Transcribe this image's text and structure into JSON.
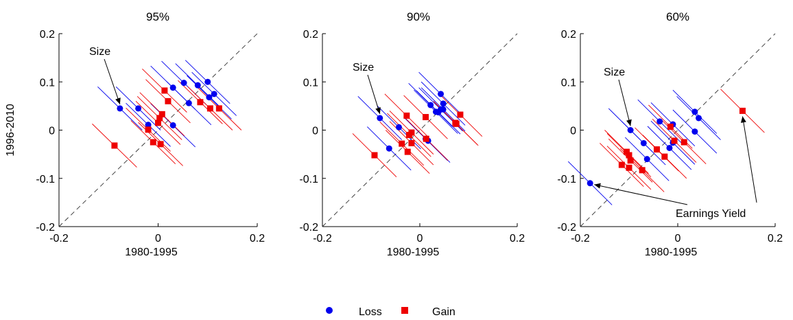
{
  "figure": {
    "legend": {
      "placement": "bottom-center",
      "items": [
        {
          "label": "Loss",
          "color": "#0000ee",
          "marker": "circle"
        },
        {
          "label": "Gain",
          "color": "#ee0000",
          "marker": "square"
        }
      ]
    },
    "reference_line": "dashed 45-degree line"
  },
  "chart_data": [
    {
      "type": "scatter",
      "title": "95%",
      "xlabel": "1980-1995",
      "ylabel": "1996-2010",
      "xlim": [
        -0.2,
        0.2
      ],
      "ylim": [
        -0.2,
        0.2
      ],
      "xticks": [
        -0.2,
        0,
        0.2
      ],
      "yticks": [
        -0.2,
        -0.1,
        0,
        0.1,
        0.2
      ],
      "xtick_labels": [
        "-0.2",
        "0",
        "0.2"
      ],
      "ytick_labels": [
        "-0.2",
        "-0.1",
        "0",
        "0.1",
        "0.2"
      ],
      "series": [
        {
          "name": "Loss",
          "color": "#0000ee",
          "marker": "circle",
          "points": [
            [
              -0.077,
              0.045
            ],
            [
              -0.04,
              0.045
            ],
            [
              -0.02,
              0.011
            ],
            [
              0.03,
              0.088
            ],
            [
              0.052,
              0.098
            ],
            [
              0.062,
              0.056
            ],
            [
              0.08,
              0.093
            ],
            [
              0.1,
              0.1
            ],
            [
              0.113,
              0.075
            ],
            [
              0.103,
              0.068
            ],
            [
              0.03,
              0.01
            ]
          ]
        },
        {
          "name": "Gain",
          "color": "#ee0000",
          "marker": "square",
          "points": [
            [
              -0.088,
              -0.032
            ],
            [
              -0.02,
              0.001
            ],
            [
              -0.01,
              -0.025
            ],
            [
              0,
              0.015
            ],
            [
              0.003,
              0.025
            ],
            [
              0.008,
              0.033
            ],
            [
              0.013,
              0.082
            ],
            [
              0.02,
              0.06
            ],
            [
              0.005,
              -0.029
            ],
            [
              0.085,
              0.058
            ],
            [
              0.105,
              0.045
            ],
            [
              0.123,
              0.045
            ]
          ]
        }
      ],
      "annotations": [
        {
          "text": "Size",
          "target": [
            -0.077,
            0.045
          ]
        }
      ]
    },
    {
      "type": "scatter",
      "title": "90%",
      "xlabel": "1980-1995",
      "ylabel": "",
      "xlim": [
        -0.2,
        0.2
      ],
      "ylim": [
        -0.2,
        0.2
      ],
      "xticks": [
        -0.2,
        0,
        0.2
      ],
      "yticks": [
        -0.2,
        -0.1,
        0,
        0.1,
        0.2
      ],
      "xtick_labels": [
        "-0.2",
        "0",
        "0.2"
      ],
      "ytick_labels": [
        "-0.2",
        "-0.1",
        "0",
        "0.1",
        "0.2"
      ],
      "series": [
        {
          "name": "Loss",
          "color": "#0000ee",
          "marker": "circle",
          "points": [
            [
              -0.082,
              0.025
            ],
            [
              -0.063,
              -0.038
            ],
            [
              -0.043,
              0.006
            ],
            [
              0.012,
              -0.018
            ],
            [
              0.017,
              -0.022
            ],
            [
              0.022,
              0.052
            ],
            [
              0.033,
              0.038
            ],
            [
              0.043,
              0.043
            ],
            [
              0.043,
              0.075
            ],
            [
              0.048,
              0.055
            ],
            [
              0.048,
              0.043
            ],
            [
              0.038,
              0.037
            ]
          ]
        },
        {
          "name": "Gain",
          "color": "#ee0000",
          "marker": "square",
          "points": [
            [
              -0.093,
              -0.052
            ],
            [
              -0.037,
              -0.028
            ],
            [
              -0.027,
              0.03
            ],
            [
              -0.025,
              -0.045
            ],
            [
              -0.022,
              -0.01
            ],
            [
              -0.017,
              -0.027
            ],
            [
              -0.017,
              -0.005
            ],
            [
              0.012,
              0.027
            ],
            [
              0.013,
              -0.018
            ],
            [
              0.073,
              0.015
            ],
            [
              0.075,
              0.013
            ],
            [
              0.083,
              0.032
            ]
          ]
        }
      ],
      "annotations": [
        {
          "text": "Size",
          "target": [
            -0.082,
            0.025
          ]
        }
      ]
    },
    {
      "type": "scatter",
      "title": "60%",
      "xlabel": "1980-1995",
      "ylabel": "",
      "xlim": [
        -0.2,
        0.2
      ],
      "ylim": [
        -0.2,
        0.2
      ],
      "xticks": [
        -0.2,
        0,
        0.2
      ],
      "yticks": [
        -0.2,
        -0.1,
        0,
        0.1,
        0.2
      ],
      "xtick_labels": [
        "-0.2",
        "0",
        "0.2"
      ],
      "ytick_labels": [
        "-0.2",
        "-0.1",
        "0",
        "0.1",
        "0.2"
      ],
      "series": [
        {
          "name": "Loss",
          "color": "#0000ee",
          "marker": "circle",
          "points": [
            [
              -0.18,
              -0.11
            ],
            [
              -0.097,
              0
            ],
            [
              -0.07,
              -0.027
            ],
            [
              -0.063,
              -0.06
            ],
            [
              -0.037,
              0.018
            ],
            [
              -0.017,
              -0.037
            ],
            [
              -0.01,
              -0.026
            ],
            [
              -0.01,
              0.012
            ],
            [
              0.035,
              0.038
            ],
            [
              0.035,
              -0.003
            ],
            [
              0.043,
              0.025
            ]
          ]
        },
        {
          "name": "Gain",
          "color": "#ee0000",
          "marker": "square",
          "points": [
            [
              -0.115,
              -0.072
            ],
            [
              -0.105,
              -0.045
            ],
            [
              -0.1,
              -0.078
            ],
            [
              -0.1,
              -0.052
            ],
            [
              -0.097,
              -0.063
            ],
            [
              -0.073,
              -0.083
            ],
            [
              -0.043,
              -0.04
            ],
            [
              -0.027,
              -0.055
            ],
            [
              -0.015,
              0.007
            ],
            [
              -0.007,
              -0.022
            ],
            [
              0.013,
              -0.025
            ],
            [
              0.133,
              0.04
            ]
          ]
        }
      ],
      "annotations": [
        {
          "text": "Size",
          "target": [
            -0.097,
            0
          ]
        },
        {
          "text": "Earnings Yield",
          "target": [
            -0.18,
            -0.11
          ]
        }
      ]
    }
  ]
}
